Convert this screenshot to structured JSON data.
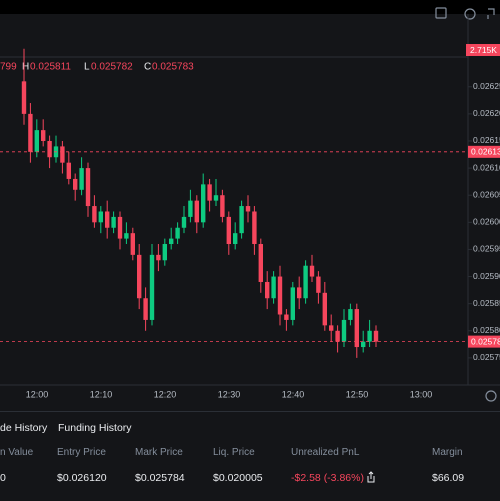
{
  "chart_data": {
    "type": "candlestick",
    "volume_label": "2.715K",
    "ohlc_legend": {
      "open": "799",
      "high_prefix": "H",
      "high": "0.025811",
      "low_prefix": "L",
      "low": "0.025782",
      "close_prefix": "C",
      "close": "0.025783"
    },
    "open": [
      0.02626,
      0.0262,
      0.02613,
      0.02617,
      0.02615,
      0.02612,
      0.02614,
      0.02611,
      0.02608,
      0.02606,
      0.0261,
      0.02603,
      0.026,
      0.02602,
      0.02599,
      0.02601,
      0.02597,
      0.02598,
      0.02594,
      0.02586,
      0.02582,
      0.02594,
      0.02593,
      0.02596,
      0.02597,
      0.02599,
      0.02601,
      0.02604,
      0.026,
      0.02607,
      0.02604,
      0.02605,
      0.02601,
      0.02596,
      0.02598,
      0.02603,
      0.02602,
      0.02596,
      0.02589,
      0.02586,
      0.0259,
      0.02583,
      0.02582,
      0.02588,
      0.02586,
      0.02592,
      0.0259,
      0.02587,
      0.02581,
      0.0258,
      0.02578,
      0.02582,
      0.02584,
      0.02577,
      0.02578,
      0.0258
    ],
    "high": [
      0.02632,
      0.02622,
      0.02619,
      0.02619,
      0.02616,
      0.02616,
      0.02615,
      0.02613,
      0.02609,
      0.02612,
      0.02611,
      0.02605,
      0.02603,
      0.02604,
      0.02602,
      0.02602,
      0.026,
      0.02599,
      0.02596,
      0.02588,
      0.02596,
      0.02596,
      0.02597,
      0.02599,
      0.026,
      0.02603,
      0.02606,
      0.02605,
      0.02609,
      0.02608,
      0.02608,
      0.02606,
      0.02602,
      0.026,
      0.02604,
      0.02605,
      0.02603,
      0.02597,
      0.02591,
      0.02591,
      0.02592,
      0.02584,
      0.02589,
      0.0259,
      0.02593,
      0.02594,
      0.02591,
      0.02589,
      0.02583,
      0.02581,
      0.02584,
      0.02585,
      0.02585,
      0.0258,
      0.02582,
      0.02581
    ],
    "low": [
      0.02618,
      0.02611,
      0.02612,
      0.02614,
      0.0261,
      0.02611,
      0.02609,
      0.02607,
      0.02604,
      0.02605,
      0.02601,
      0.02599,
      0.02598,
      0.02597,
      0.02598,
      0.02595,
      0.02596,
      0.02593,
      0.02584,
      0.0258,
      0.02581,
      0.02591,
      0.02592,
      0.02595,
      0.02596,
      0.02598,
      0.026,
      0.02598,
      0.02599,
      0.02602,
      0.02603,
      0.026,
      0.02594,
      0.02595,
      0.02597,
      0.026,
      0.02594,
      0.02587,
      0.02584,
      0.02585,
      0.02581,
      0.0258,
      0.02581,
      0.02584,
      0.02585,
      0.02589,
      0.02585,
      0.0258,
      0.02578,
      0.02576,
      0.02577,
      0.02581,
      0.02575,
      0.02576,
      0.02577,
      0.02577
    ],
    "close": [
      0.0262,
      0.02613,
      0.02617,
      0.02615,
      0.02612,
      0.02614,
      0.02611,
      0.02608,
      0.02606,
      0.0261,
      0.02603,
      0.026,
      0.02602,
      0.02599,
      0.02601,
      0.02597,
      0.02598,
      0.02594,
      0.02586,
      0.02582,
      0.02594,
      0.02593,
      0.02596,
      0.02597,
      0.02599,
      0.02601,
      0.02604,
      0.026,
      0.02607,
      0.02604,
      0.02605,
      0.02601,
      0.02596,
      0.02598,
      0.02603,
      0.02602,
      0.02596,
      0.02589,
      0.02586,
      0.0259,
      0.02583,
      0.02582,
      0.02588,
      0.02586,
      0.02592,
      0.0259,
      0.02587,
      0.02581,
      0.0258,
      0.02578,
      0.02582,
      0.02584,
      0.02577,
      0.02578,
      0.0258,
      0.02578
    ],
    "up_color": "#0ecb81",
    "down_color": "#f6465d",
    "ylim": [
      0.0257,
      0.02641
    ],
    "yticks": [
      0.02625,
      {
        "value": 0.0262,
        "label": "0.02620"
      },
      0.02615,
      {
        "value": 0.0261,
        "label": "0.02610"
      },
      0.02605,
      {
        "value": 0.026,
        "label": "0.02600"
      },
      0.02595,
      {
        "value": 0.0259,
        "label": "0.02590"
      },
      0.02585,
      {
        "value": 0.0258,
        "label": "0.02580"
      },
      0.02575
    ],
    "price_lines": [
      0.02613,
      0.02578
    ],
    "xticks": [
      "12:00",
      "12:10",
      "12:20",
      "12:30",
      "12:40",
      "12:50",
      "13:00"
    ]
  },
  "panel": {
    "tabs": [
      "de History",
      "Funding History"
    ],
    "headers": [
      "n Value",
      "Entry Price",
      "Mark Price",
      "Liq. Price",
      "Unrealized PnL",
      "Margin"
    ],
    "row": [
      "0",
      "$0.026120",
      "$0.025784",
      "$0.020005",
      "-$2.58 (-3.86%)",
      "$66.09"
    ]
  }
}
